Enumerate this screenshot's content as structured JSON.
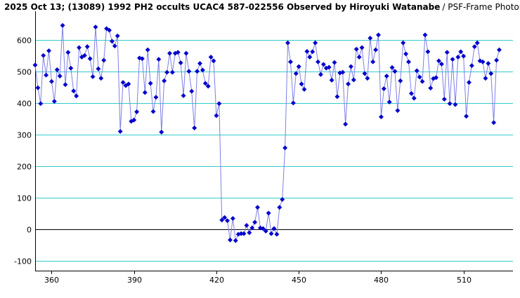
{
  "title": "2025 Oct 13; (13089) 1992 PH2 occults UCAC4 587-022556 Observed by Hiroyuki Watanabe",
  "subtitle": "/ PSF-Frame Photometry /",
  "colors": {
    "series": "#0000cc",
    "grid": "#33cccc",
    "zero_line": "#000000",
    "axis": "#000000"
  },
  "chart_data": {
    "type": "line",
    "title": "2025 Oct 13; (13089) 1992 PH2 occults UCAC4 587-022556 Observed by Hiroyuki Watanabe",
    "subtitle": "/ PSF-Frame Photometry /",
    "xlabel": "",
    "ylabel": "",
    "xlim": [
      354,
      528
    ],
    "ylim": [
      -130,
      690
    ],
    "x_ticks": [
      360,
      390,
      420,
      450,
      480,
      510
    ],
    "y_ticks": [
      -100,
      0,
      100,
      200,
      300,
      400,
      500,
      600
    ],
    "grid": "horizontal",
    "zero_line": true,
    "marker": "diamond",
    "x_start": 354,
    "x_step": 1,
    "values": [
      520,
      448,
      398,
      550,
      488,
      565,
      468,
      405,
      505,
      485,
      645,
      458,
      560,
      510,
      438,
      422,
      575,
      545,
      550,
      578,
      540,
      483,
      640,
      508,
      478,
      535,
      635,
      630,
      595,
      580,
      612,
      310,
      465,
      455,
      460,
      342,
      346,
      372,
      542,
      540,
      433,
      568,
      462,
      373,
      418,
      538,
      308,
      470,
      497,
      557,
      497,
      557,
      560,
      527,
      423,
      557,
      500,
      437,
      321,
      500,
      525,
      504,
      462,
      453,
      545,
      533,
      360,
      398,
      30,
      38,
      28,
      -33,
      35,
      -35,
      -15,
      -13,
      -13,
      13,
      -10,
      5,
      23,
      70,
      5,
      3,
      -5,
      52,
      -13,
      3,
      -15,
      70,
      95,
      258,
      590,
      530,
      400,
      493,
      515,
      460,
      443,
      563,
      545,
      562,
      590,
      530,
      490,
      522,
      510,
      513,
      472,
      528,
      420,
      495,
      497,
      333,
      460,
      515,
      473,
      570,
      545,
      575,
      493,
      478,
      605,
      530,
      568,
      615,
      356,
      445,
      485,
      403,
      512,
      500,
      376,
      470,
      590,
      555,
      530,
      430,
      415,
      502,
      482,
      468,
      615,
      562,
      447,
      477,
      480,
      533,
      523,
      412,
      560,
      398,
      538,
      395,
      545,
      562,
      548,
      358,
      465,
      518,
      578,
      590,
      533,
      530,
      478,
      525,
      493,
      338,
      535,
      568
    ]
  }
}
